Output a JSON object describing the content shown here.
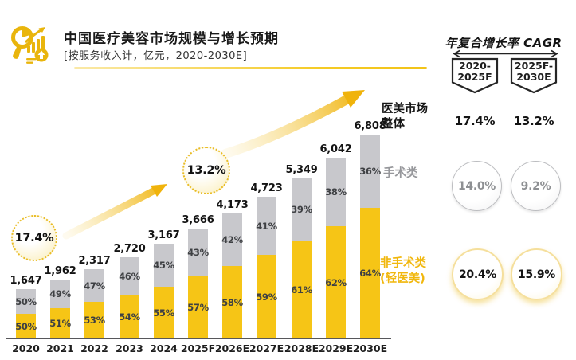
{
  "header": {
    "title": "中国医疗美容市场规模与增长预期",
    "subtitle": "[按服务收入计，亿元，2020-2030E]",
    "logo_icon": "chart-magnifier-icon"
  },
  "chart_data": {
    "type": "bar",
    "stacked": true,
    "unit": "亿元",
    "categories": [
      "2020",
      "2021",
      "2022",
      "2023",
      "2024",
      "2025F",
      "2026E",
      "2027E",
      "2028E",
      "2029E",
      "2030E"
    ],
    "totals": [
      1647,
      1962,
      2317,
      2720,
      3167,
      3666,
      4173,
      4723,
      5349,
      6042,
      6808
    ],
    "total_labels": [
      "1,647",
      "1,962",
      "2,317",
      "2,720",
      "3,167",
      "3,666",
      "4,173",
      "4,723",
      "5,349",
      "6,042",
      "6,808"
    ],
    "series": [
      {
        "name": "非手术类(轻医美)",
        "color": "#F6C516",
        "pct": [
          50,
          51,
          53,
          54,
          55,
          57,
          58,
          59,
          61,
          62,
          64
        ]
      },
      {
        "name": "手术类",
        "color": "#C8C8CC",
        "pct": [
          50,
          49,
          47,
          46,
          45,
          43,
          42,
          41,
          39,
          38,
          36
        ]
      }
    ],
    "annotations": [
      {
        "text": "17.4%"
      },
      {
        "text": "13.2%"
      }
    ],
    "legend_position": "right",
    "grid": false
  },
  "side_labels": {
    "market_total": "医美市场整体",
    "surgical": "手术类",
    "nonsurgical_line1": "非手术类",
    "nonsurgical_line2": "(轻医美)"
  },
  "cagr_panel": {
    "title": "年复合增长率 CAGR",
    "periods": [
      {
        "line1": "2020-",
        "line2": "2025F"
      },
      {
        "line1": "2025F-",
        "line2": "2030E"
      }
    ],
    "market_values": [
      "17.4%",
      "13.2%"
    ],
    "surgical_values": [
      "14.0%",
      "9.2%"
    ],
    "nonsurgical_values": [
      "20.4%",
      "15.9%"
    ]
  },
  "colors": {
    "yellow": "#F6C516",
    "gray": "#C8C8CC",
    "accent_gold": "#E9B50C"
  }
}
